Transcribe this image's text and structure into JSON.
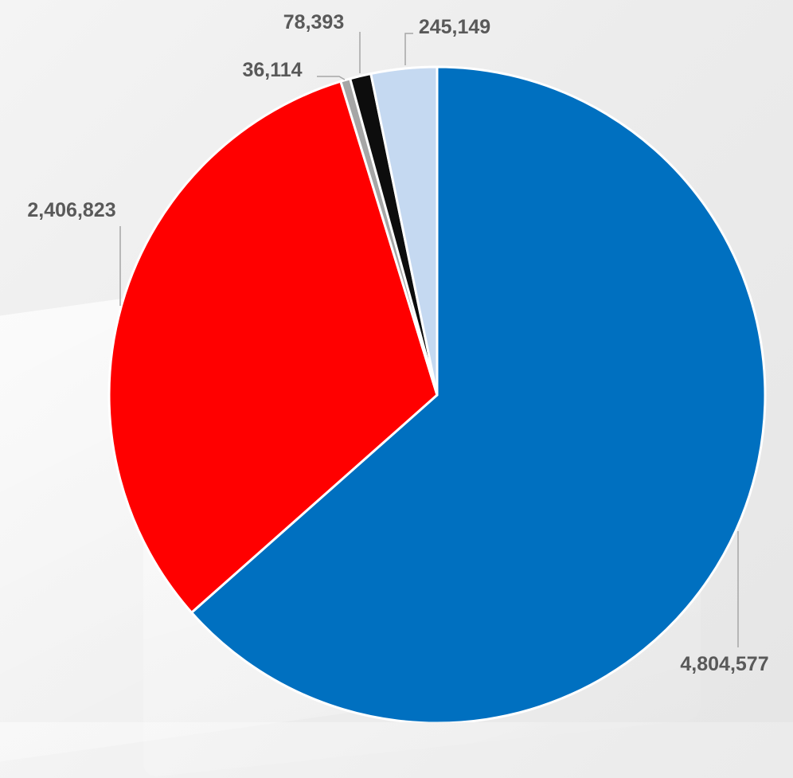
{
  "chart_data": {
    "type": "pie",
    "slices": [
      {
        "value": 4804577,
        "label": "4,804,577",
        "color": "#0070C0"
      },
      {
        "value": 2406823,
        "label": "2,406,823",
        "color": "#FF0000"
      },
      {
        "value": 36114,
        "label": "36,114",
        "color": "#A6A6A6"
      },
      {
        "value": 78393,
        "label": "78,393",
        "color": "#0D0D0D"
      },
      {
        "value": 245149,
        "label": "245,149",
        "color": "#C5D9F1"
      }
    ],
    "start_angle_deg": 0,
    "direction": "clockwise",
    "slice_border_color": "#FFFFFF",
    "label_color": "#595959",
    "leader_line_color": "#A6A6A6"
  }
}
